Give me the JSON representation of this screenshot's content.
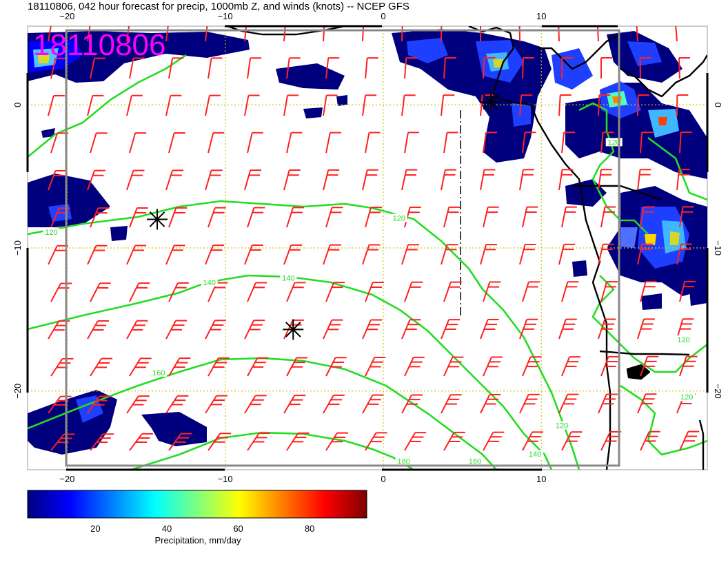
{
  "header": {
    "title": "18110806, 042 hour forecast for precip, 1000mb Z, and winds (knots) -- NCEP GFS"
  },
  "stamp": "18110806",
  "map": {
    "lon_range": [
      -22.5,
      20.5
    ],
    "lat_range": [
      -25.5,
      5.5
    ],
    "lon_tick_labels": [
      "−20",
      "−10",
      "0",
      "10"
    ],
    "lon_ticks": [
      -20,
      -10,
      0,
      10
    ],
    "lat_tick_labels": [
      "0",
      "−10",
      "−20"
    ],
    "lat_ticks": [
      0,
      -10,
      -20
    ],
    "gridlines": "dotted yellow every 10 degrees",
    "contour_color": "#22dd22",
    "barb_color": "#ff2020",
    "precip_colormap": [
      "#00007f",
      "#0000ff",
      "#007fff",
      "#00ffff",
      "#7fff7f",
      "#ffff00",
      "#ff7f00",
      "#ff0000",
      "#7f0000"
    ],
    "contour_labels": [
      {
        "text": "120",
        "lon": 1.0,
        "lat": -8.0
      },
      {
        "text": "140",
        "lon": -11.0,
        "lat": -12.5
      },
      {
        "text": "140",
        "lon": -6.0,
        "lat": -12.2
      },
      {
        "text": "160",
        "lon": -14.2,
        "lat": -18.8
      },
      {
        "text": "180",
        "lon": 1.3,
        "lat": -25.0
      },
      {
        "text": "160",
        "lon": 5.8,
        "lat": -25.0
      },
      {
        "text": "140",
        "lon": 9.6,
        "lat": -24.5
      },
      {
        "text": "120",
        "lon": 11.3,
        "lat": -22.5
      },
      {
        "text": "120",
        "lon": 14.6,
        "lat": -2.7
      },
      {
        "text": "120",
        "lon": 19.0,
        "lat": -16.5
      },
      {
        "text": "120",
        "lon": 19.2,
        "lat": -20.5
      },
      {
        "text": "120",
        "lon": -21.0,
        "lat": -9.0
      }
    ],
    "star_markers": [
      {
        "lon": -14.3,
        "lat": -8.0
      },
      {
        "lon": -5.7,
        "lat": -15.7
      },
      {
        "lon": 6.8,
        "lat": 0.2
      }
    ]
  },
  "colorbar": {
    "tick_labels": [
      "20",
      "40",
      "60",
      "80"
    ],
    "ticks": [
      20,
      40,
      60,
      80
    ],
    "range": [
      1,
      96
    ],
    "label": "Precipitation, mm/day"
  }
}
